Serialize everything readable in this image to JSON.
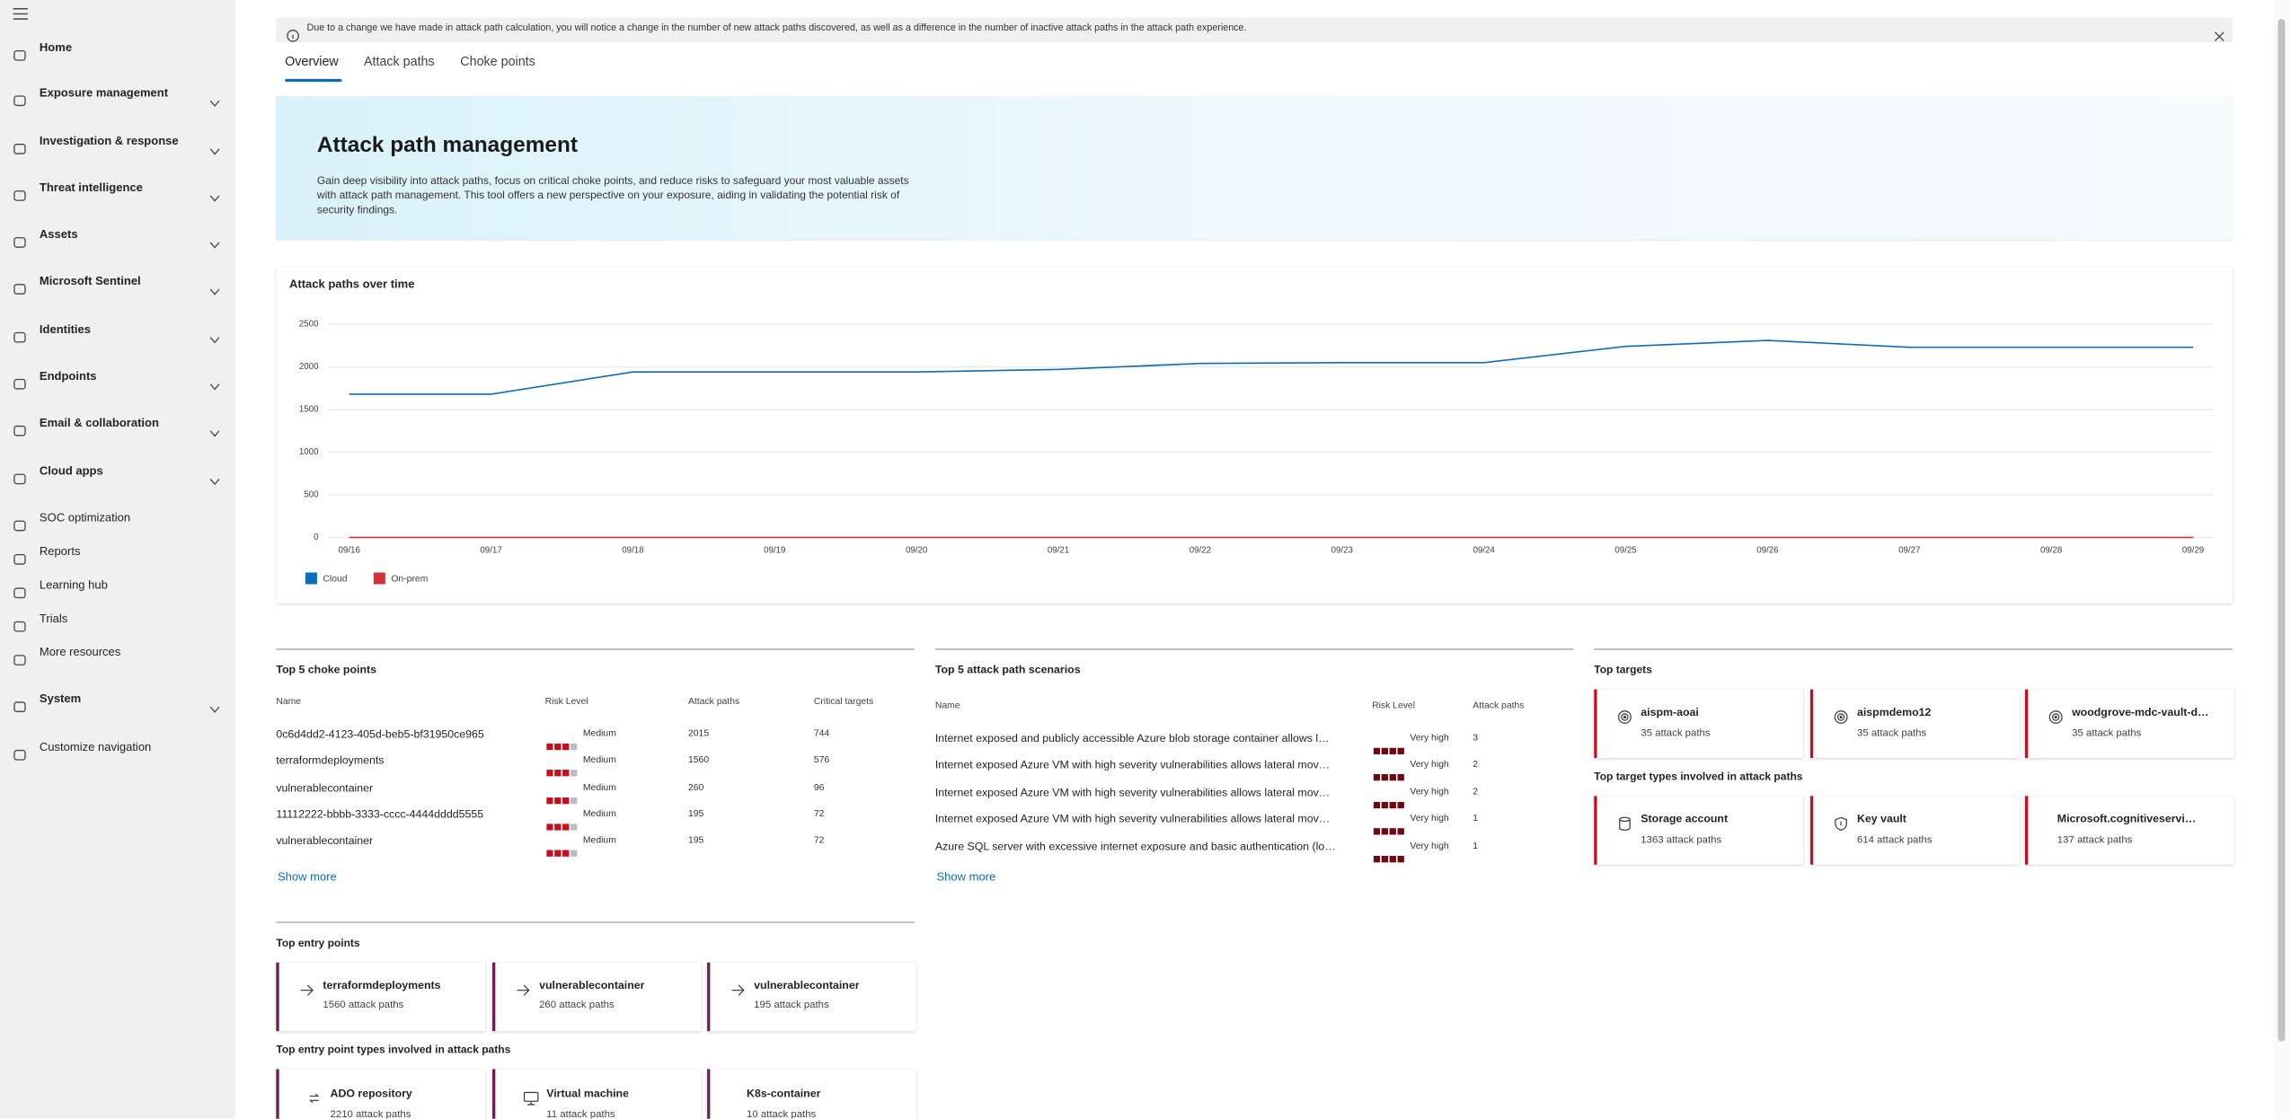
{
  "nav": {
    "items": [
      {
        "label": "Home",
        "expandable": false
      },
      {
        "label": "Exposure management",
        "expandable": true
      },
      {
        "label": "Investigation & response",
        "expandable": true
      },
      {
        "label": "Threat intelligence",
        "expandable": true
      },
      {
        "label": "Assets",
        "expandable": true
      },
      {
        "label": "Microsoft Sentinel",
        "expandable": true
      },
      {
        "label": "Identities",
        "expandable": true
      },
      {
        "label": "Endpoints",
        "expandable": true
      },
      {
        "label": "Email & collaboration",
        "expandable": true
      },
      {
        "label": "Cloud apps",
        "expandable": true
      },
      {
        "label": "SOC optimization",
        "expandable": false
      },
      {
        "label": "Reports",
        "expandable": false
      },
      {
        "label": "Learning hub",
        "expandable": false
      },
      {
        "label": "Trials",
        "expandable": false
      },
      {
        "label": "More resources",
        "expandable": false
      },
      {
        "label": "System",
        "expandable": true
      },
      {
        "label": "Customize navigation",
        "expandable": false
      }
    ]
  },
  "banner": {
    "text": "Due to a change we have made in attack path calculation, you will notice a change in the number of new attack paths discovered, as well as a difference in the number of inactive attack paths in the attack path experience."
  },
  "tabs": {
    "items": [
      "Overview",
      "Attack paths",
      "Choke points"
    ],
    "active": 0
  },
  "hero": {
    "title": "Attack path management",
    "description": "Gain deep visibility into attack paths, focus on critical choke points, and reduce risks to safeguard your most valuable assets with attack path management. This tool offers a new perspective on your exposure, aiding in validating the potential risk of security findings."
  },
  "chart_data": {
    "type": "line",
    "title": "Attack paths over time",
    "categories": [
      "09/16",
      "09/17",
      "09/18",
      "09/19",
      "09/20",
      "09/21",
      "09/22",
      "09/23",
      "09/24",
      "09/25",
      "09/26",
      "09/27",
      "09/28",
      "09/29"
    ],
    "series": [
      {
        "name": "Cloud",
        "color": "#0f6cbd",
        "values": [
          1680,
          1680,
          1940,
          1940,
          1940,
          1970,
          2040,
          2050,
          2050,
          2240,
          2310,
          2230,
          2230,
          2230
        ]
      },
      {
        "name": "On-prem",
        "color": "#d13438",
        "values": [
          0,
          0,
          0,
          0,
          0,
          0,
          0,
          0,
          0,
          0,
          0,
          0,
          0,
          0
        ]
      }
    ],
    "ylim": [
      0,
      2500
    ],
    "yticks": [
      0,
      500,
      1000,
      1500,
      2000,
      2500
    ],
    "grid": true
  },
  "choke_points": {
    "title": "Top 5 choke points",
    "columns": [
      "Name",
      "Risk Level",
      "Attack paths",
      "Critical targets"
    ],
    "rows": [
      [
        "0c6d4dd2-4123-405d-beb5-bf31950ce965",
        "Medium",
        2015,
        744
      ],
      [
        "terraformdeployments",
        "Medium",
        1560,
        576
      ],
      [
        "vulnerablecontainer",
        "Medium",
        260,
        96
      ],
      [
        "11112222-bbbb-3333-cccc-4444dddd5555",
        "Medium",
        195,
        72
      ],
      [
        "vulnerablecontainer",
        "Medium",
        195,
        72
      ]
    ],
    "show_more": "Show more"
  },
  "scenarios": {
    "title": "Top 5 attack path scenarios",
    "columns": [
      "Name",
      "Risk Level",
      "Attack paths"
    ],
    "rows": [
      [
        "Internet exposed and publicly accessible Azure blob storage container allows l…",
        "Very high",
        3
      ],
      [
        "Internet exposed Azure VM with high severity vulnerabilities allows lateral mov…",
        "Very high",
        2
      ],
      [
        "Internet exposed Azure VM with high severity vulnerabilities allows lateral mov…",
        "Very high",
        2
      ],
      [
        "Internet exposed Azure VM with high severity vulnerabilities allows lateral mov…",
        "Very high",
        1
      ],
      [
        "Azure SQL server with excessive internet exposure and basic authentication (lo…",
        "Very high",
        1
      ]
    ],
    "show_more": "Show more"
  },
  "top_targets": {
    "title": "Top targets",
    "cards": [
      {
        "label": "aispm-aoai",
        "count": "35 attack paths"
      },
      {
        "label": "aispmdemo12",
        "count": "35 attack paths"
      },
      {
        "label": "woodgrove-mdc-vault-d…",
        "count": "35 attack paths"
      }
    ]
  },
  "top_target_types": {
    "title": "Top target types involved in attack paths",
    "cards": [
      {
        "label": "Storage account",
        "count": "1363 attack paths"
      },
      {
        "label": "Key vault",
        "count": "614 attack paths"
      },
      {
        "label": "Microsoft.cognitiveservi…",
        "count": "137 attack paths"
      }
    ]
  },
  "top_entry_points": {
    "title": "Top entry points",
    "cards": [
      {
        "label": "terraformdeployments",
        "count": "1560 attack paths"
      },
      {
        "label": "vulnerablecontainer",
        "count": "260 attack paths"
      },
      {
        "label": "vulnerablecontainer",
        "count": "195 attack paths"
      }
    ]
  },
  "top_entry_point_types": {
    "title": "Top entry point types involved in attack paths",
    "cards": [
      {
        "label": "ADO repository",
        "count": "2210 attack paths"
      },
      {
        "label": "Virtual machine",
        "count": "11 attack paths"
      },
      {
        "label": "K8s-container",
        "count": "10 attack paths"
      }
    ]
  }
}
